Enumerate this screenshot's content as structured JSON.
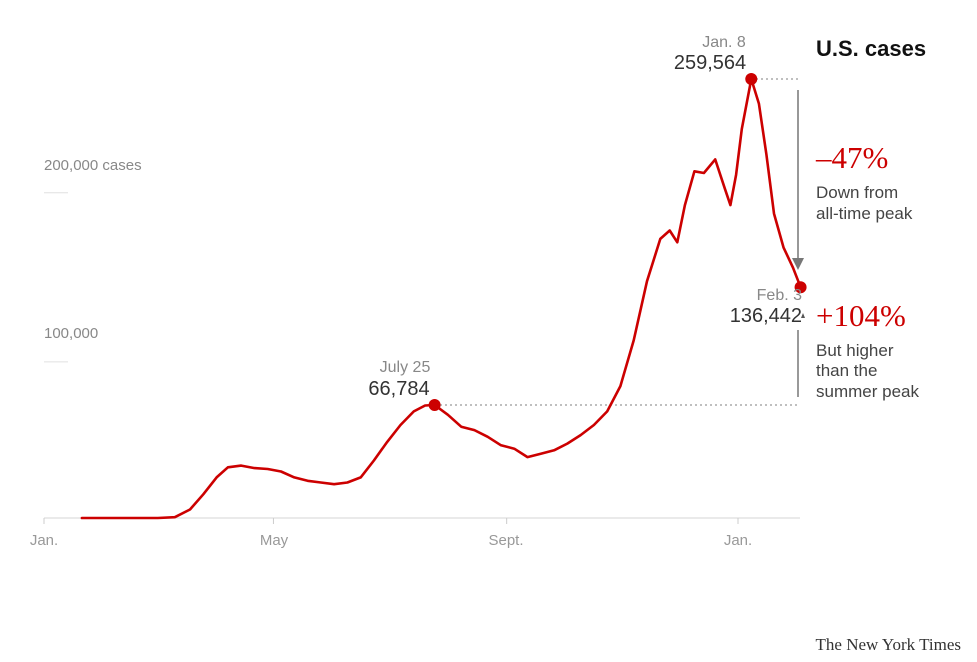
{
  "chart_data": {
    "type": "line",
    "title": "U.S. cases",
    "ylabel": "",
    "xlabel": "",
    "ylim": [
      0,
      260000
    ],
    "y_ticks": [
      {
        "value": 200000,
        "label": "200,000 cases"
      },
      {
        "value": 100000,
        "label": "100,000"
      }
    ],
    "x_ticks": [
      "Jan.",
      "May",
      "Sept.",
      "Jan."
    ],
    "series": [
      {
        "color": "#cc0000",
        "x": [
          "2020-01-21",
          "2020-03-01",
          "2020-03-10",
          "2020-03-18",
          "2020-03-25",
          "2020-04-01",
          "2020-04-07",
          "2020-04-14",
          "2020-04-21",
          "2020-04-28",
          "2020-05-05",
          "2020-05-12",
          "2020-05-19",
          "2020-05-26",
          "2020-06-02",
          "2020-06-09",
          "2020-06-16",
          "2020-06-23",
          "2020-06-30",
          "2020-07-07",
          "2020-07-14",
          "2020-07-20",
          "2020-07-25",
          "2020-08-01",
          "2020-08-08",
          "2020-08-15",
          "2020-08-22",
          "2020-08-29",
          "2020-09-05",
          "2020-09-12",
          "2020-09-19",
          "2020-09-26",
          "2020-10-03",
          "2020-10-10",
          "2020-10-17",
          "2020-10-24",
          "2020-10-31",
          "2020-11-07",
          "2020-11-14",
          "2020-11-21",
          "2020-11-26",
          "2020-11-30",
          "2020-12-04",
          "2020-12-09",
          "2020-12-14",
          "2020-12-20",
          "2020-12-25",
          "2020-12-28",
          "2020-12-31",
          "2021-01-03",
          "2021-01-08",
          "2021-01-12",
          "2021-01-16",
          "2021-01-20",
          "2021-01-25",
          "2021-01-30",
          "2021-02-03"
        ],
        "y": [
          0,
          0,
          500,
          5000,
          14000,
          24000,
          30000,
          31000,
          29500,
          29000,
          27500,
          24000,
          22000,
          21000,
          20000,
          21000,
          24000,
          34000,
          45000,
          55000,
          63000,
          66500,
          66784,
          61000,
          54000,
          52000,
          48000,
          43000,
          41000,
          36000,
          38000,
          40000,
          44000,
          49000,
          55000,
          63000,
          78000,
          105000,
          140000,
          165000,
          170000,
          163000,
          185000,
          205000,
          204000,
          212000,
          195000,
          185000,
          203000,
          230000,
          259564,
          245000,
          215000,
          180000,
          160000,
          148000,
          136442
        ]
      }
    ],
    "annotations": [
      {
        "x": "2020-07-25",
        "date_label": "July 25",
        "value_label": "66,784"
      },
      {
        "x": "2021-01-08",
        "date_label": "Jan. 8",
        "value_label": "259,564"
      },
      {
        "x": "2021-02-03",
        "date_label": "Feb. 3",
        "value_label": "136,442"
      }
    ],
    "callouts": [
      {
        "pct": "–47%",
        "line1": "Down from",
        "line2": "all-time peak"
      },
      {
        "pct": "+104%",
        "line1": "But higher",
        "line2": "than the",
        "line3": "summer peak"
      }
    ]
  },
  "footer": {
    "credit": "The New York Times"
  },
  "colors": {
    "accent": "#cc0000",
    "axis": "#cccccc",
    "guide": "#999999"
  }
}
